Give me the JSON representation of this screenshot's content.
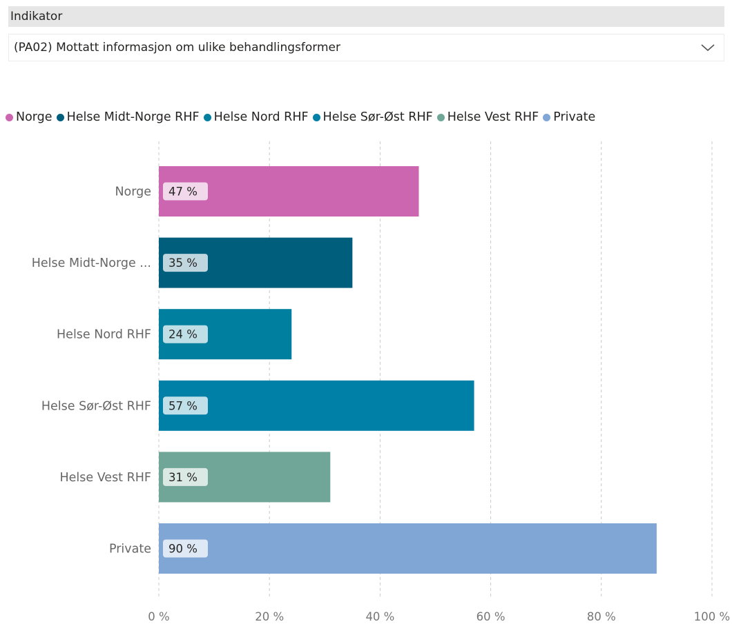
{
  "slicer": {
    "title": "Indikator",
    "selected": "(PA02) Mottatt informasjon om ulike behandlingsformer"
  },
  "chart_data": {
    "type": "bar",
    "orientation": "horizontal",
    "categories": [
      "Norge",
      "Helse Midt-Norge RHF",
      "Helse Nord RHF",
      "Helse Sør-Øst RHF",
      "Helse Vest RHF",
      "Private"
    ],
    "category_labels": [
      "Norge",
      "Helse Midt-Norge ...",
      "Helse Nord RHF",
      "Helse Sør-Øst RHF",
      "Helse Vest RHF",
      "Private"
    ],
    "values": [
      47,
      35,
      24,
      57,
      31,
      90
    ],
    "data_labels": [
      "47 %",
      "35 %",
      "24 %",
      "57 %",
      "31 %",
      "90 %"
    ],
    "colors": [
      "#cc66b0",
      "#005e7d",
      "#00809e",
      "#0080a6",
      "#6fa698",
      "#80a6d6"
    ],
    "xlim": [
      0,
      100
    ],
    "xticks": [
      0,
      20,
      40,
      60,
      80,
      100
    ],
    "xtick_labels": [
      "0 %",
      "20 %",
      "40 %",
      "60 %",
      "80 %",
      "100 %"
    ],
    "grid": true,
    "legend": {
      "position": "top-left",
      "entries": [
        {
          "name": "Norge",
          "color": "#cc66b0"
        },
        {
          "name": "Helse Midt-Norge RHF",
          "color": "#005e7d"
        },
        {
          "name": "Helse Nord RHF",
          "color": "#00809e"
        },
        {
          "name": "Helse Sør-Øst RHF",
          "color": "#0080a6"
        },
        {
          "name": "Helse Vest RHF",
          "color": "#6fa698"
        },
        {
          "name": "Private",
          "color": "#80a6d6"
        }
      ]
    }
  }
}
